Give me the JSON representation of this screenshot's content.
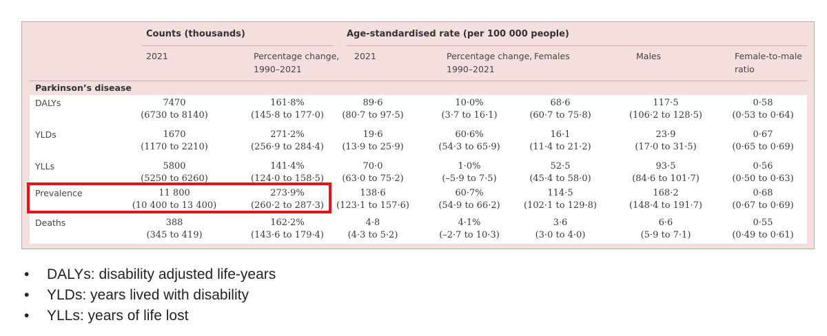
{
  "table": {
    "header_groups": {
      "counts": "Counts (thousands)",
      "rate": "Age-standardised rate (per 100 000 people)"
    },
    "columns": [
      "2021",
      "Percentage change,\n1990–2021",
      "2021",
      "Percentage change,\n1990–2021",
      "Females",
      "Males",
      "Female-to-male\nratio"
    ],
    "section": "Parkinson’s disease",
    "rows": [
      {
        "label": "DALYs",
        "cells": [
          [
            "7470",
            "(6730 to 8140)"
          ],
          [
            "161·8%",
            "(145·8 to 177·0)"
          ],
          [
            "89·6",
            "(80·7 to 97·5)"
          ],
          [
            "10·0%",
            "(3·7 to 16·1)"
          ],
          [
            "68·6",
            "(60·7 to 75·8)"
          ],
          [
            "117·5",
            "(106·2 to 128·5)"
          ],
          [
            "0·58",
            "(0·53 to 0·64)"
          ]
        ]
      },
      {
        "label": "YLDs",
        "cells": [
          [
            "1670",
            "(1170 to 2210)"
          ],
          [
            "271·2%",
            "(256·9 to 284·4)"
          ],
          [
            "19·6",
            "(13·9 to 25·9)"
          ],
          [
            "60·6%",
            "(54·3 to 65·9)"
          ],
          [
            "16·1",
            "(11·4 to 21·2)"
          ],
          [
            "23·9",
            "(17·0 to 31·5)"
          ],
          [
            "0·67",
            "(0·65 to 0·69)"
          ]
        ]
      },
      {
        "label": "YLLs",
        "cells": [
          [
            "5800",
            "(5250 to 6260)"
          ],
          [
            "141·4%",
            "(124·0 to 158·5)"
          ],
          [
            "70·0",
            "(63·0 to 75·2)"
          ],
          [
            "1·0%",
            "(–5·9 to 7·5)"
          ],
          [
            "52·5",
            "(45·4 to 58·0)"
          ],
          [
            "93·5",
            "(84·6 to 101·7)"
          ],
          [
            "0·56",
            "(0·50 to 0·63)"
          ]
        ]
      },
      {
        "label": "Prevalence",
        "cells": [
          [
            "11 800",
            "(10 400 to 13 400)"
          ],
          [
            "273·9%",
            "(260·2 to 287·3)"
          ],
          [
            "138·6",
            "(123·1 to 157·6)"
          ],
          [
            "60·7%",
            "(54·9 to 66·2)"
          ],
          [
            "114·5",
            "(102·1 to 129·8)"
          ],
          [
            "168·2",
            "(148·4 to 191·7)"
          ],
          [
            "0·68",
            "(0·67 to 0·69)"
          ]
        ]
      },
      {
        "label": "Deaths",
        "cells": [
          [
            "388",
            "(345 to 419)"
          ],
          [
            "162·2%",
            "(143·6 to 179·4)"
          ],
          [
            "4·8",
            "(4·3 to 5·2)"
          ],
          [
            "4·1%",
            "(–2·7 to 10·3)"
          ],
          [
            "3·6",
            "(3·0 to 4·0)"
          ],
          [
            "6·6",
            "(5·9 to 7·1)"
          ],
          [
            "0·55",
            "(0·49 to 0·61)"
          ]
        ]
      }
    ],
    "highlight_color": "#e1141e",
    "panel_color": "#f5dede"
  },
  "notes": {
    "bullet": "•",
    "items": [
      "DALYs: disability adjusted life-years",
      "YLDs: years lived with disability",
      "YLLs: years of life lost"
    ]
  }
}
